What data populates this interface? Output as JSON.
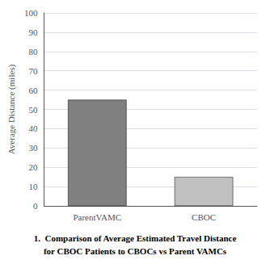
{
  "chart_data": {
    "type": "bar",
    "title": "1.  Comparison of Average Estimated Travel Distance",
    "subtitle": "for CBOC Patients to CBOCs vs Parent VAMCs",
    "ylabel": "Average Distance (miles)",
    "categories": [
      "ParentVAMC",
      "CBOC"
    ],
    "values": [
      55,
      15
    ],
    "colors": [
      "#808080",
      "#c0c0c0"
    ],
    "ylim": [
      0,
      100
    ],
    "yticks": [
      0,
      10,
      20,
      30,
      40,
      50,
      60,
      70,
      80,
      90,
      100
    ],
    "grid": true
  }
}
